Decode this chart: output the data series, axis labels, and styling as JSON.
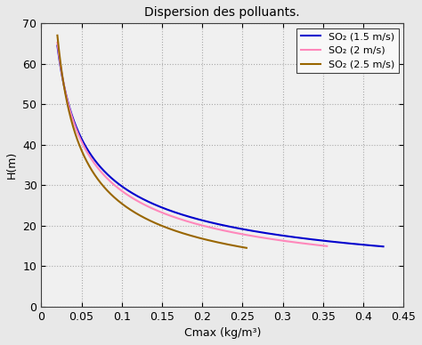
{
  "title": "Dispersion des polluants.",
  "xlabel": "Cmax (kg/m³)",
  "ylabel": "H(m)",
  "xlim": [
    0,
    0.45
  ],
  "ylim": [
    0,
    70
  ],
  "xticks": [
    0,
    0.05,
    0.1,
    0.15,
    0.2,
    0.25,
    0.3,
    0.35,
    0.4,
    0.45
  ],
  "yticks": [
    0,
    10,
    20,
    30,
    40,
    50,
    60,
    70
  ],
  "figure_background": "#e8e8e8",
  "axes_background": "#f0f0f0",
  "grid_color": "#aaaaaa",
  "grid_style": ":",
  "curves": [
    {
      "label": "SO₂ (1.5 m/s)",
      "color": "#0000cd",
      "k": 9.82,
      "n": 0.481,
      "x_start": 0.02,
      "x_end": 0.425
    },
    {
      "label": "SO₂ (2 m/s)",
      "color": "#ff88bb",
      "k": 8.77,
      "n": 0.513,
      "x_start": 0.02,
      "x_end": 0.355
    },
    {
      "label": "SO₂ (2.5 m/s)",
      "color": "#996600",
      "k": 6.36,
      "n": 0.602,
      "x_start": 0.02,
      "x_end": 0.255
    }
  ],
  "title_fontsize": 10,
  "label_fontsize": 9,
  "tick_fontsize": 9,
  "legend_fontsize": 8,
  "linewidth": 1.5
}
